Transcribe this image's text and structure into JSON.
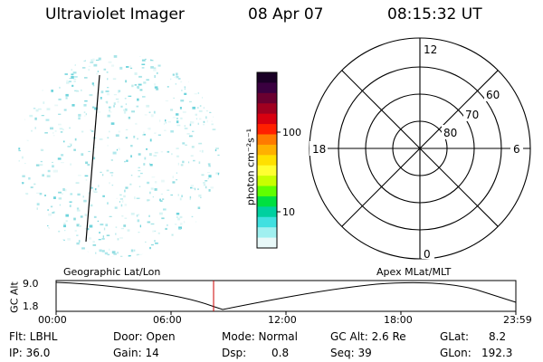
{
  "header": {
    "title": "Ultraviolet Imager",
    "date": "08 Apr 07",
    "time": "08:15:32 UT"
  },
  "colorbar": {
    "unit_label": "photon cm⁻²s⁻¹",
    "ticks": [
      "100",
      "10"
    ],
    "colors": [
      "#1a0026",
      "#3a0040",
      "#6a0030",
      "#a00020",
      "#d80010",
      "#ff2000",
      "#ff7a00",
      "#ffb000",
      "#ffe000",
      "#ffff30",
      "#c8ff00",
      "#60ff00",
      "#00e040",
      "#00d0a0",
      "#40e0e0",
      "#a0f0f0",
      "#e8f8f8"
    ]
  },
  "polar": {
    "mlt_labels": {
      "top": "12",
      "right": "6",
      "bottom": "0",
      "left": "18"
    },
    "lat_labels": [
      "60",
      "70",
      "80"
    ]
  },
  "timeline": {
    "left_title": "Geographic Lat/Lon",
    "right_title": "Apex MLat/MLT",
    "y_label": "GC Alt",
    "y_ticks": [
      "9.0",
      "1.8"
    ],
    "x_ticks": [
      "00:00",
      "06:00",
      "12:00",
      "18:00",
      "23:59"
    ]
  },
  "info": {
    "flt": "Flt: LBHL",
    "door": "Door: Open",
    "mode": "Mode: Normal",
    "gcalt": "GC Alt: 2.6 Re",
    "glat_label": "GLat:",
    "glat_value": "8.2",
    "ip": "IP: 36.0",
    "gain": "Gain: 14",
    "dsp_label": "Dsp:",
    "dsp_value": "0.8",
    "seq": "Seq: 39",
    "glon_label": "GLon:",
    "glon_value": "192.3"
  }
}
